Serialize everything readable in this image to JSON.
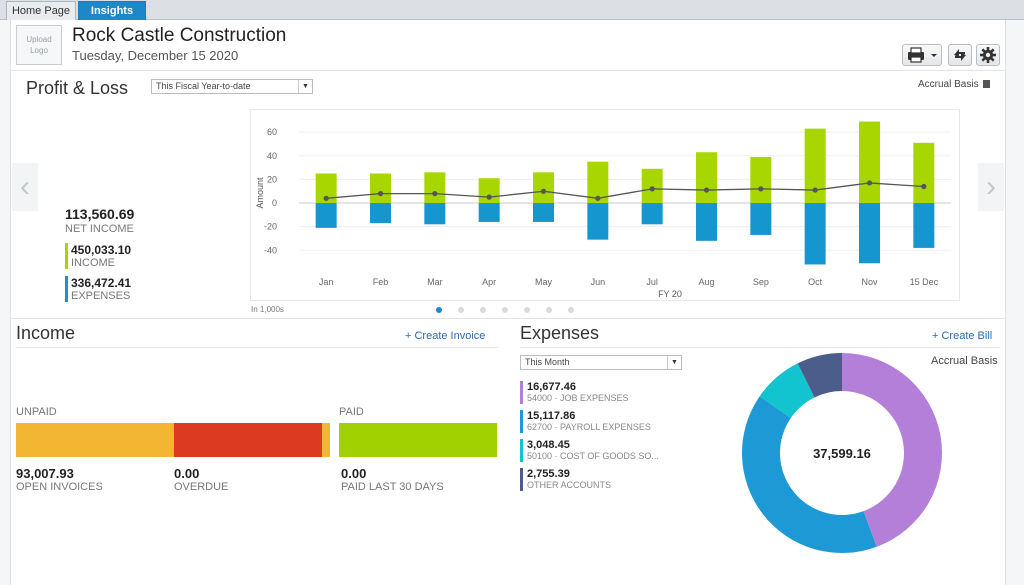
{
  "tabs": [
    {
      "label": "Home Page"
    },
    {
      "label": "Insights"
    }
  ],
  "header": {
    "logo_label": "Upload Logo",
    "company": "Rock Castle Construction",
    "date": "Tuesday, December 15 2020"
  },
  "profit_loss": {
    "title": "Profit & Loss",
    "period": "This Fiscal Year-to-date",
    "basis": "Accrual Basis",
    "net_income": "113,560.69",
    "net_income_label": "NET INCOME",
    "income": "450,033.10",
    "income_label": "INCOME",
    "expenses": "336,472.41",
    "expenses_label": "EXPENSES",
    "units_note": "In 1,000s",
    "colors": {
      "income": "#a7d600",
      "expense": "#1696cf",
      "line": "#555555"
    }
  },
  "chart_data": {
    "type": "bar",
    "categories": [
      "Jan",
      "Feb",
      "Mar",
      "Apr",
      "May",
      "Jun",
      "Jul",
      "Aug",
      "Sep",
      "Oct",
      "Nov",
      "15 Dec"
    ],
    "series": [
      {
        "values": [
          25,
          25,
          26,
          21,
          26,
          35,
          29,
          43,
          39,
          63,
          69,
          51
        ]
      },
      {
        "values": [
          -21,
          -17,
          -18,
          -16,
          -16,
          -31,
          -18,
          -32,
          -27,
          -52,
          -51,
          -38
        ]
      },
      {
        "values": [
          4,
          8,
          8,
          5,
          10,
          4,
          12,
          11,
          12,
          11,
          17,
          14
        ]
      }
    ],
    "xlabel": "FY 20",
    "ylabel": "Amount",
    "yticks": [
      60,
      40,
      20,
      0,
      -20,
      -40
    ],
    "ylim": [
      -55,
      72
    ],
    "grid": true
  },
  "pager": {
    "count": 7,
    "active": 0
  },
  "income": {
    "title": "Income",
    "create_link": "+ Create Invoice",
    "unpaid_label": "UNPAID",
    "paid_label": "PAID",
    "open_invoices": "93,007.93",
    "open_invoices_label": "OPEN INVOICES",
    "overdue": "0.00",
    "overdue_label": "OVERDUE",
    "paid_last_30": "0.00",
    "paid_last_30_label": "PAID LAST 30 DAYS",
    "colors": {
      "open": "#f2b632",
      "overdue": "#dc3b1f",
      "paid": "#a2d100"
    }
  },
  "expenses": {
    "title": "Expenses",
    "create_link": "+ Create Bill",
    "period": "This Month",
    "basis": "Accrual Basis",
    "total": "37,599.16",
    "items": [
      {
        "value": "16,677.46",
        "name": "54000 · JOB EXPENSES",
        "amount": 16677.46,
        "color": "#b47fd9"
      },
      {
        "value": "15,117.86",
        "name": "62700 · PAYROLL EXPENSES",
        "amount": 15117.86,
        "color": "#1d9ad6"
      },
      {
        "value": "3,048.45",
        "name": "50100 · COST OF GOODS SO...",
        "amount": 3048.45,
        "color": "#12c4cf"
      },
      {
        "value": "2,755.39",
        "name": "OTHER ACCOUNTS",
        "amount": 2755.39,
        "color": "#4b5d8a"
      }
    ]
  }
}
